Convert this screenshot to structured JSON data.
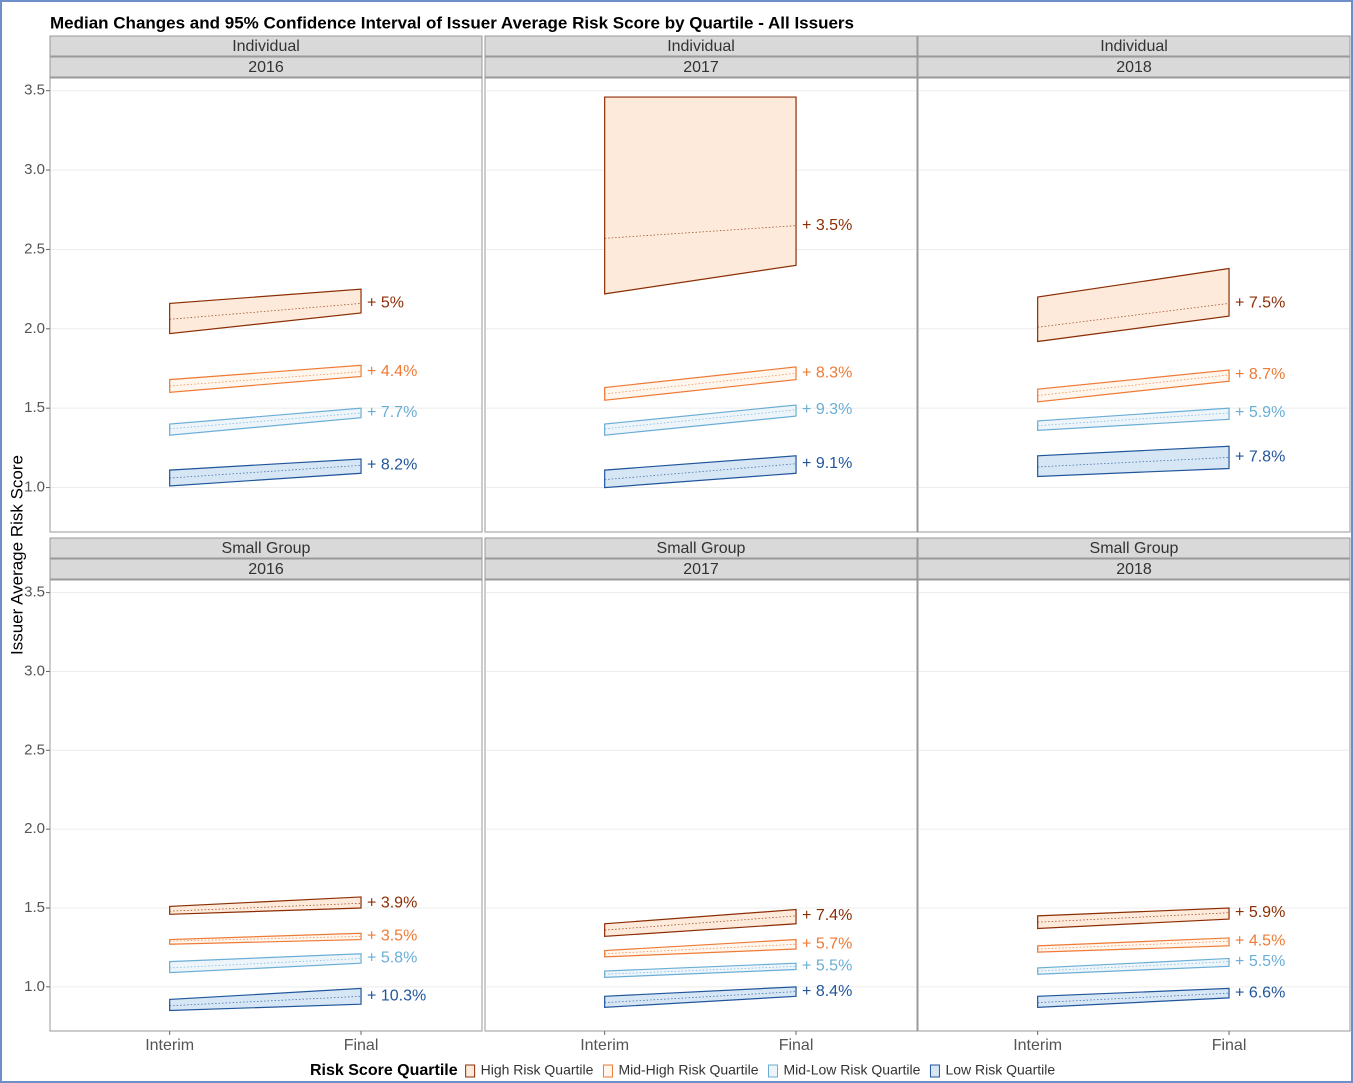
{
  "chart_data": {
    "type": "band",
    "title": "Median Changes and 95% Confidence Interval of Issuer Average Risk Score by Quartile - All Issuers",
    "y_label": "Issuer Average Risk Score",
    "categories": [
      "Interim",
      "Final"
    ],
    "ylim": [
      0.72,
      3.58
    ],
    "yticks": [
      {
        "value": 1,
        "label": "1.0"
      },
      1.5,
      {
        "value": 2,
        "label": "2.0"
      },
      2.5,
      {
        "value": 3,
        "label": "3.0"
      },
      3.5
    ],
    "grid": true,
    "legend_title": "Risk Score Quartile",
    "series": [
      {
        "name": "High Risk Quartile",
        "color": "#8c2d04",
        "fill": "#fdeadb"
      },
      {
        "name": "Mid-High Risk Quartile",
        "color": "#ee7a35",
        "fill": "#fff6ee"
      },
      {
        "name": "Mid-Low Risk Quartile",
        "color": "#6aaed6",
        "fill": "#edf5fb"
      },
      {
        "name": "Low Risk Quartile",
        "color": "#21569c",
        "fill": "#d7e6f4"
      }
    ],
    "facets": [
      {
        "row_label": "Individual",
        "col_label": "2016",
        "bands": [
          {
            "interim": [
              1.97,
              2.16
            ],
            "final": [
              2.1,
              2.25
            ],
            "median": [
              2.06,
              2.16
            ]
          },
          {
            "interim": [
              1.6,
              1.68
            ],
            "final": [
              1.7,
              1.77
            ],
            "median": [
              1.64,
              1.73
            ]
          },
          {
            "interim": [
              1.33,
              1.4
            ],
            "final": [
              1.44,
              1.5
            ],
            "median": [
              1.37,
              1.47
            ]
          },
          {
            "interim": [
              1.01,
              1.11
            ],
            "final": [
              1.09,
              1.18
            ],
            "median": [
              1.06,
              1.14
            ]
          }
        ],
        "changes": [
          5,
          4.4,
          7.7,
          8.2
        ],
        "value_labels": [
          "+ 5%",
          "+ 4.4%",
          "+ 7.7%",
          "+ 8.2%"
        ]
      },
      {
        "row_label": "Individual",
        "col_label": "2017",
        "bands": [
          {
            "interim": [
              2.22,
              3.46
            ],
            "final": [
              2.4,
              3.46
            ],
            "median": [
              2.57,
              2.65
            ]
          },
          {
            "interim": [
              1.55,
              1.63
            ],
            "final": [
              1.68,
              1.76
            ],
            "median": [
              1.59,
              1.72
            ]
          },
          {
            "interim": [
              1.33,
              1.4
            ],
            "final": [
              1.45,
              1.52
            ],
            "median": [
              1.37,
              1.49
            ]
          },
          {
            "interim": [
              1.0,
              1.11
            ],
            "final": [
              1.09,
              1.2
            ],
            "median": [
              1.05,
              1.15
            ]
          }
        ],
        "changes": [
          3.5,
          8.3,
          9.3,
          9.1
        ],
        "value_labels": [
          "+ 3.5%",
          "+ 8.3%",
          "+ 9.3%",
          "+ 9.1%"
        ]
      },
      {
        "row_label": "Individual",
        "col_label": "2018",
        "bands": [
          {
            "interim": [
              1.92,
              2.2
            ],
            "final": [
              2.08,
              2.38
            ],
            "median": [
              2.01,
              2.16
            ]
          },
          {
            "interim": [
              1.54,
              1.62
            ],
            "final": [
              1.67,
              1.74
            ],
            "median": [
              1.58,
              1.71
            ]
          },
          {
            "interim": [
              1.36,
              1.42
            ],
            "final": [
              1.43,
              1.5
            ],
            "median": [
              1.39,
              1.47
            ]
          },
          {
            "interim": [
              1.07,
              1.2
            ],
            "final": [
              1.12,
              1.26
            ],
            "median": [
              1.13,
              1.19
            ]
          }
        ],
        "changes": [
          7.5,
          8.7,
          5.9,
          7.8
        ],
        "value_labels": [
          "+ 7.5%",
          "+ 8.7%",
          "+ 5.9%",
          "+ 7.8%"
        ]
      },
      {
        "row_label": "Small Group",
        "col_label": "2016",
        "bands": [
          {
            "interim": [
              1.46,
              1.51
            ],
            "final": [
              1.5,
              1.57
            ],
            "median": [
              1.48,
              1.53
            ]
          },
          {
            "interim": [
              1.27,
              1.3
            ],
            "final": [
              1.3,
              1.34
            ],
            "median": [
              1.29,
              1.32
            ]
          },
          {
            "interim": [
              1.09,
              1.16
            ],
            "final": [
              1.15,
              1.21
            ],
            "median": [
              1.12,
              1.18
            ]
          },
          {
            "interim": [
              0.85,
              0.92
            ],
            "final": [
              0.89,
              0.99
            ],
            "median": [
              0.88,
              0.94
            ]
          }
        ],
        "changes": [
          3.9,
          3.5,
          5.8,
          10.3
        ],
        "value_labels": [
          "+ 3.9%",
          "+ 3.5%",
          "+ 5.8%",
          "+ 10.3%"
        ]
      },
      {
        "row_label": "Small Group",
        "col_label": "2017",
        "bands": [
          {
            "interim": [
              1.32,
              1.4
            ],
            "final": [
              1.4,
              1.49
            ],
            "median": [
              1.36,
              1.45
            ]
          },
          {
            "interim": [
              1.19,
              1.23
            ],
            "final": [
              1.24,
              1.3
            ],
            "median": [
              1.21,
              1.27
            ]
          },
          {
            "interim": [
              1.06,
              1.1
            ],
            "final": [
              1.11,
              1.15
            ],
            "median": [
              1.08,
              1.13
            ]
          },
          {
            "interim": [
              0.87,
              0.94
            ],
            "final": [
              0.94,
              1.0
            ],
            "median": [
              0.9,
              0.97
            ]
          }
        ],
        "changes": [
          7.4,
          5.7,
          5.5,
          8.4
        ],
        "value_labels": [
          "+ 7.4%",
          "+ 5.7%",
          "+ 5.5%",
          "+ 8.4%"
        ]
      },
      {
        "row_label": "Small Group",
        "col_label": "2018",
        "bands": [
          {
            "interim": [
              1.37,
              1.45
            ],
            "final": [
              1.43,
              1.5
            ],
            "median": [
              1.41,
              1.47
            ]
          },
          {
            "interim": [
              1.22,
              1.26
            ],
            "final": [
              1.26,
              1.31
            ],
            "median": [
              1.24,
              1.29
            ]
          },
          {
            "interim": [
              1.08,
              1.12
            ],
            "final": [
              1.13,
              1.18
            ],
            "median": [
              1.1,
              1.16
            ]
          },
          {
            "interim": [
              0.87,
              0.94
            ],
            "final": [
              0.93,
              0.99
            ],
            "median": [
              0.9,
              0.96
            ]
          }
        ],
        "changes": [
          5.9,
          4.5,
          5.5,
          6.6
        ],
        "value_labels": [
          "+ 5.9%",
          "+ 4.5%",
          "+ 5.5%",
          "+ 6.6%"
        ]
      }
    ]
  }
}
